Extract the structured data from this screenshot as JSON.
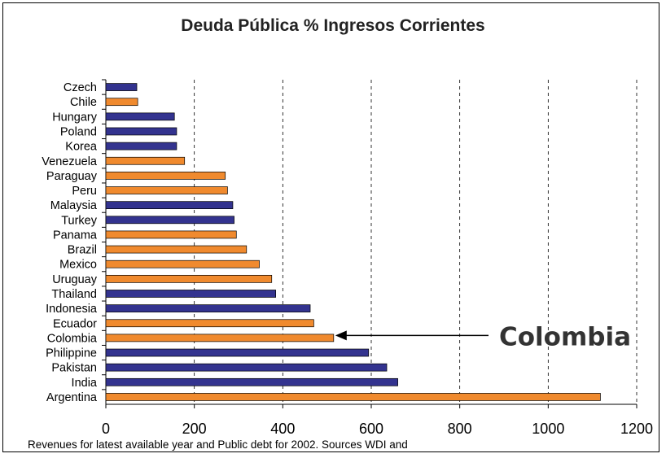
{
  "chart_data": {
    "type": "bar",
    "orientation": "horizontal",
    "title": "Deuda Pública % Ingresos Corrientes",
    "categories": [
      "Czech",
      "Chile",
      "Hungary",
      "Poland",
      "Korea",
      "Venezuela",
      "Paraguay",
      "Peru",
      "Malaysia",
      "Turkey",
      "Panama",
      "Brazil",
      "Mexico",
      "Uruguay",
      "Thailand",
      "Indonesia",
      "Ecuador",
      "Colombia",
      "Philippine",
      "Pakistan",
      "India",
      "Argentina"
    ],
    "values": [
      70,
      72,
      155,
      160,
      160,
      178,
      270,
      275,
      287,
      290,
      295,
      318,
      347,
      375,
      384,
      462,
      470,
      515,
      594,
      635,
      660,
      1118
    ],
    "bar_groups": [
      "europe_asia",
      "latin_america",
      "europe_asia",
      "europe_asia",
      "europe_asia",
      "latin_america",
      "latin_america",
      "latin_america",
      "europe_asia",
      "europe_asia",
      "latin_america",
      "latin_america",
      "latin_america",
      "latin_america",
      "europe_asia",
      "europe_asia",
      "latin_america",
      "latin_america",
      "europe_asia",
      "europe_asia",
      "europe_asia",
      "latin_america"
    ],
    "colors": {
      "europe_asia": "#33338f",
      "latin_america": "#f08a2e",
      "bar_edge": "#000000"
    },
    "xlim": [
      0,
      1200
    ],
    "xticks": [
      "0",
      "200",
      "400",
      "600",
      "800",
      "1000",
      "1200"
    ],
    "grid": "vertical dashed",
    "annotation": {
      "text": "Colombia",
      "points_to": "Colombia"
    },
    "note": "Revenues for latest available year and Public debt for 2002. Sources WDI and"
  }
}
